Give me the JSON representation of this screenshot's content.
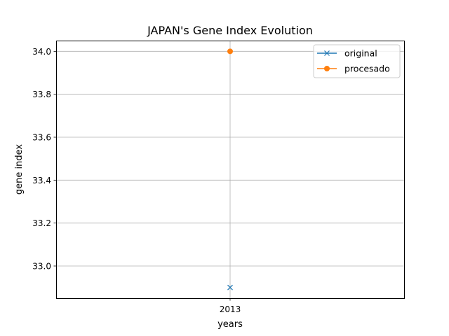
{
  "chart_data": {
    "type": "line",
    "title": "JAPAN's Gene Index Evolution",
    "xlabel": "years",
    "ylabel": "gene index",
    "categories": [
      "2013"
    ],
    "ylim": [
      32.85,
      34.05
    ],
    "yticks": [
      "33.0",
      "33.2",
      "33.4",
      "33.6",
      "33.8",
      "34.0"
    ],
    "grid": true,
    "legend_position": "top-right",
    "series": [
      {
        "name": "original",
        "values": [
          32.9
        ],
        "color": "#1f77b4",
        "marker": "x-marker"
      },
      {
        "name": "procesado",
        "values": [
          34.0
        ],
        "color": "#ff7f0e",
        "marker": "circle-marker"
      }
    ]
  }
}
